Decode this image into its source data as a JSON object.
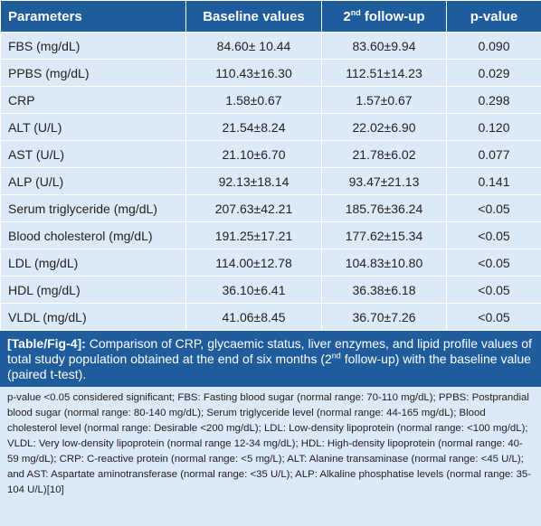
{
  "table": {
    "headers": [
      "Parameters",
      "Baseline values",
      "2",
      "nd",
      " follow-up",
      "p-value"
    ],
    "rows": [
      [
        "FBS (mg/dL)",
        "84.60± 10.44",
        "83.60±9.94",
        "0.090"
      ],
      [
        "PPBS (mg/dL)",
        "110.43±16.30",
        "112.51±14.23",
        "0.029"
      ],
      [
        "CRP",
        "1.58±0.67",
        "1.57±0.67",
        "0.298"
      ],
      [
        "ALT (U/L)",
        "21.54±8.24",
        "22.02±6.90",
        "0.120"
      ],
      [
        "AST (U/L)",
        "21.10±6.70",
        "21.78±6.02",
        "0.077"
      ],
      [
        "ALP (U/L)",
        "92.13±18.14",
        "93.47±21.13",
        "0.141"
      ],
      [
        "Serum triglyceride (mg/dL)",
        "207.63±42.21",
        "185.76±36.24",
        "<0.05"
      ],
      [
        "Blood cholesterol (mg/dL)",
        "191.25±17.21",
        "177.62±15.34",
        "<0.05"
      ],
      [
        "LDL (mg/dL)",
        "114.00±12.78",
        "104.83±10.80",
        "<0.05"
      ],
      [
        "HDL (mg/dL)",
        "36.10±6.41",
        "36.38±6.18",
        "<0.05"
      ],
      [
        "VLDL (mg/dL)",
        "41.06±8.45",
        "36.70±7.26",
        "<0.05"
      ]
    ]
  },
  "caption": {
    "label": "[Table/Fig-4]:",
    "text_a": " Comparison of CRP, glycaemic status, liver enzymes, and lipid profile values of total study population obtained at the end of six months (2",
    "sup": "nd",
    "text_b": " follow-up) with the baseline value (paired t-test)."
  },
  "notes": "p-value <0.05 considered significant; FBS: Fasting blood sugar (normal range: 70-110 mg/dL); PPBS: Postprandial blood sugar (normal range: 80-140 mg/dL); Serum triglyceride level (normal range: 44-165 mg/dL); Blood cholesterol level (normal range: Desirable <200 mg/dL); LDL: Low-density lipoprotein (normal range: <100 mg/dL); VLDL: Very low-density lipoprotein (normal range 12-34 mg/dL); HDL: High-density lipoprotein (normal range: 40-59 mg/dL); CRP: C-reactive protein (normal range: <5 mg/L); ALT: Alanine transaminase (normal range: <45 U/L); and AST: Aspartate aminotransferase (normal range: <35 U/L); ALP: Alkaline phosphatise levels (normal range: 35-104 U/L)[10]",
  "colors": {
    "header_bg": "#1f5c9c",
    "body_bg": "#dce9f6",
    "grid": "#ffffff"
  }
}
